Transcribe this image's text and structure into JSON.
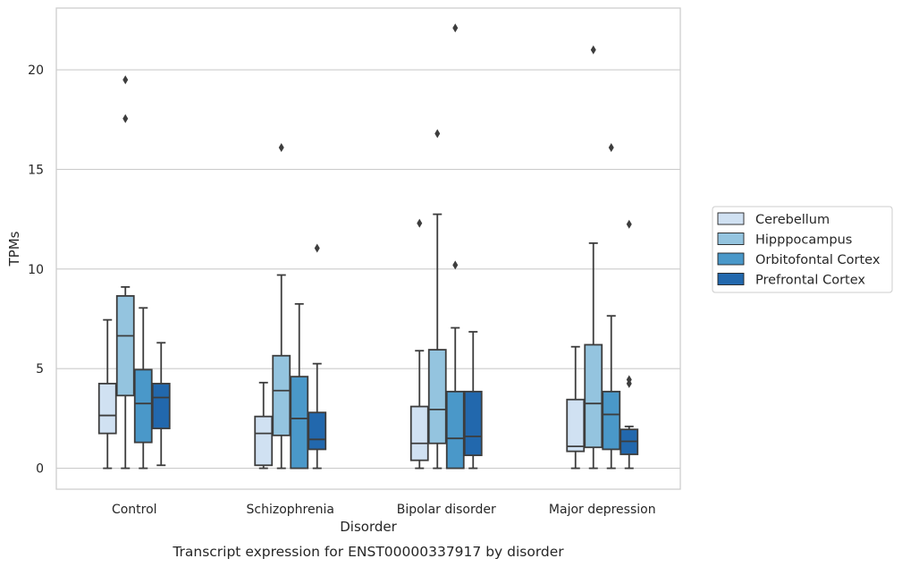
{
  "chart_data": {
    "type": "boxplot",
    "title": "",
    "caption": "Transcript expression for ENST00000337917 by disorder",
    "xlabel": "Disorder",
    "ylabel": "TPMs",
    "ylim": [
      -1.05,
      23.1
    ],
    "yticks": [
      0,
      5,
      10,
      15,
      20
    ],
    "grid": "horizontal",
    "legend_position": "right",
    "categories": [
      "Control",
      "Schizophrenia",
      "Bipolar disorder",
      "Major depression"
    ],
    "series": [
      {
        "name": "Cerebellum",
        "color": "#d0e1f2",
        "boxes": [
          {
            "whisker_low": 0,
            "q1": 1.75,
            "median": 2.65,
            "q3": 4.25,
            "whisker_high": 7.45,
            "outliers": []
          },
          {
            "whisker_low": 0,
            "q1": 0.15,
            "median": 1.75,
            "q3": 2.6,
            "whisker_high": 4.3,
            "outliers": []
          },
          {
            "whisker_low": 0,
            "q1": 0.4,
            "median": 1.25,
            "q3": 3.1,
            "whisker_high": 5.9,
            "outliers": [
              12.3
            ]
          },
          {
            "whisker_low": 0,
            "q1": 0.85,
            "median": 1.1,
            "q3": 3.45,
            "whisker_high": 6.1,
            "outliers": []
          }
        ]
      },
      {
        "name": "Hipppocampus",
        "color": "#94c4df",
        "boxes": [
          {
            "whisker_low": 0,
            "q1": 3.65,
            "median": 6.65,
            "q3": 8.65,
            "whisker_high": 9.1,
            "outliers": [
              17.55,
              19.5
            ]
          },
          {
            "whisker_low": 0,
            "q1": 1.65,
            "median": 3.9,
            "q3": 5.65,
            "whisker_high": 9.7,
            "outliers": [
              16.1
            ]
          },
          {
            "whisker_low": 0,
            "q1": 1.25,
            "median": 2.95,
            "q3": 5.95,
            "whisker_high": 12.75,
            "outliers": [
              16.8
            ]
          },
          {
            "whisker_low": 0,
            "q1": 1.05,
            "median": 3.25,
            "q3": 6.2,
            "whisker_high": 11.3,
            "outliers": [
              21.0
            ]
          }
        ]
      },
      {
        "name": "Orbitofontal Cortex",
        "color": "#4a98c9",
        "boxes": [
          {
            "whisker_low": 0,
            "q1": 1.3,
            "median": 3.25,
            "q3": 4.95,
            "whisker_high": 8.05,
            "outliers": []
          },
          {
            "whisker_low": 0,
            "q1": 0,
            "median": 2.5,
            "q3": 4.6,
            "whisker_high": 8.25,
            "outliers": []
          },
          {
            "whisker_low": 0,
            "q1": 0,
            "median": 1.5,
            "q3": 3.85,
            "whisker_high": 7.05,
            "outliers": [
              10.2,
              22.1
            ]
          },
          {
            "whisker_low": 0,
            "q1": 0.95,
            "median": 2.7,
            "q3": 3.85,
            "whisker_high": 7.65,
            "outliers": [
              16.1
            ]
          }
        ]
      },
      {
        "name": "Prefrontal Cortex",
        "color": "#2268ad",
        "boxes": [
          {
            "whisker_low": 0.15,
            "q1": 2.0,
            "median": 3.55,
            "q3": 4.25,
            "whisker_high": 6.3,
            "outliers": []
          },
          {
            "whisker_low": 0,
            "q1": 0.95,
            "median": 1.45,
            "q3": 2.8,
            "whisker_high": 5.25,
            "outliers": [
              11.05
            ]
          },
          {
            "whisker_low": 0,
            "q1": 0.65,
            "median": 1.6,
            "q3": 3.85,
            "whisker_high": 6.85,
            "outliers": []
          },
          {
            "whisker_low": 0,
            "q1": 0.7,
            "median": 1.35,
            "q3": 1.95,
            "whisker_high": 2.1,
            "outliers": [
              4.25,
              4.45,
              12.25
            ]
          }
        ]
      }
    ]
  }
}
